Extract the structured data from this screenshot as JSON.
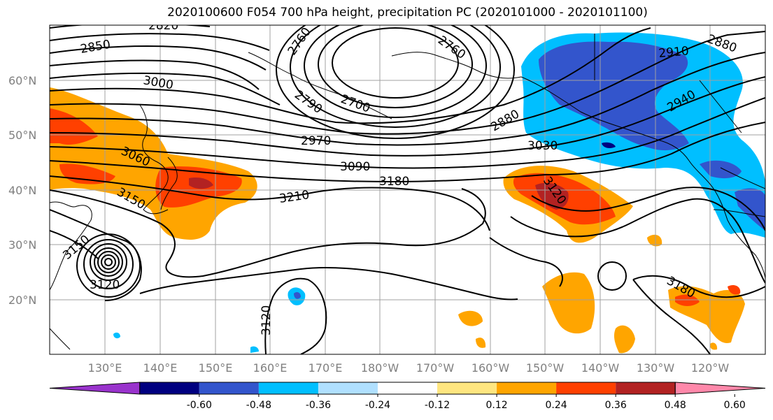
{
  "title": "2020100600 F054 700 hPa height, precipitation PC (2020101000 - 2020101100)",
  "map": {
    "lat_labels": [
      "60°N",
      "50°N",
      "40°N",
      "30°N",
      "20°N"
    ],
    "lon_labels": [
      "130°E",
      "140°E",
      "150°E",
      "160°E",
      "170°E",
      "180°W",
      "170°W",
      "160°W",
      "150°W",
      "140°W",
      "130°W",
      "120°W"
    ],
    "contour_labels": [
      "2820",
      "2850",
      "2760",
      "2760",
      "2880",
      "2910",
      "3000",
      "2790",
      "2700",
      "2940",
      "2880",
      "3060",
      "2970",
      "3030",
      "3090",
      "3180",
      "3210",
      "3150",
      "3120",
      "3150",
      "3120",
      "3180",
      "3120"
    ]
  },
  "colorbar": {
    "colors": [
      "#9933cc",
      "#000080",
      "#3355cc",
      "#00bfff",
      "#b0e0ff",
      "#ffffff",
      "#ffe680",
      "#ffa500",
      "#ff4000",
      "#b22222",
      "#ff88aa"
    ],
    "tick_labels": [
      "-0.60",
      "-0.48",
      "-0.36",
      "-0.24",
      "-0.12",
      "0.12",
      "0.24",
      "0.36",
      "0.48",
      "0.60"
    ]
  }
}
